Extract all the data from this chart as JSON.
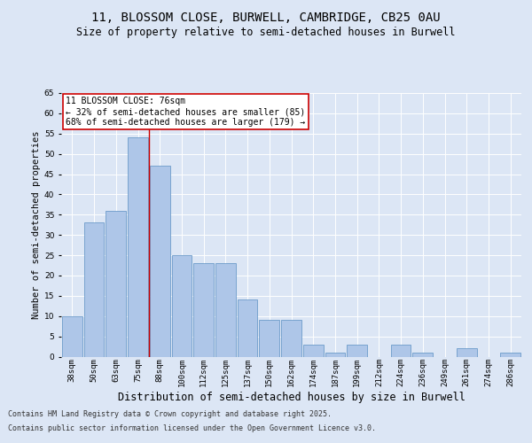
{
  "title": "11, BLOSSOM CLOSE, BURWELL, CAMBRIDGE, CB25 0AU",
  "subtitle": "Size of property relative to semi-detached houses in Burwell",
  "xlabel": "Distribution of semi-detached houses by size in Burwell",
  "ylabel": "Number of semi-detached properties",
  "categories": [
    "38sqm",
    "50sqm",
    "63sqm",
    "75sqm",
    "88sqm",
    "100sqm",
    "112sqm",
    "125sqm",
    "137sqm",
    "150sqm",
    "162sqm",
    "174sqm",
    "187sqm",
    "199sqm",
    "212sqm",
    "224sqm",
    "236sqm",
    "249sqm",
    "261sqm",
    "274sqm",
    "286sqm"
  ],
  "values": [
    10,
    33,
    36,
    54,
    47,
    25,
    23,
    23,
    14,
    9,
    9,
    3,
    1,
    3,
    0,
    3,
    1,
    0,
    2,
    0,
    1
  ],
  "bar_color": "#aec6e8",
  "bar_edge_color": "#5a8fc2",
  "vline_bin_index": 4,
  "vline_color": "#cc0000",
  "annotation_text": "11 BLOSSOM CLOSE: 76sqm\n← 32% of semi-detached houses are smaller (85)\n68% of semi-detached houses are larger (179) →",
  "annotation_box_color": "#ffffff",
  "annotation_box_edge_color": "#cc0000",
  "annotation_fontsize": 7.0,
  "ylim": [
    0,
    65
  ],
  "background_color": "#dce6f5",
  "plot_bg_color": "#dce6f5",
  "grid_color": "#ffffff",
  "title_fontsize": 10,
  "subtitle_fontsize": 8.5,
  "xlabel_fontsize": 8.5,
  "ylabel_fontsize": 7.5,
  "tick_fontsize": 6.5,
  "footer_line1": "Contains HM Land Registry data © Crown copyright and database right 2025.",
  "footer_line2": "Contains public sector information licensed under the Open Government Licence v3.0."
}
